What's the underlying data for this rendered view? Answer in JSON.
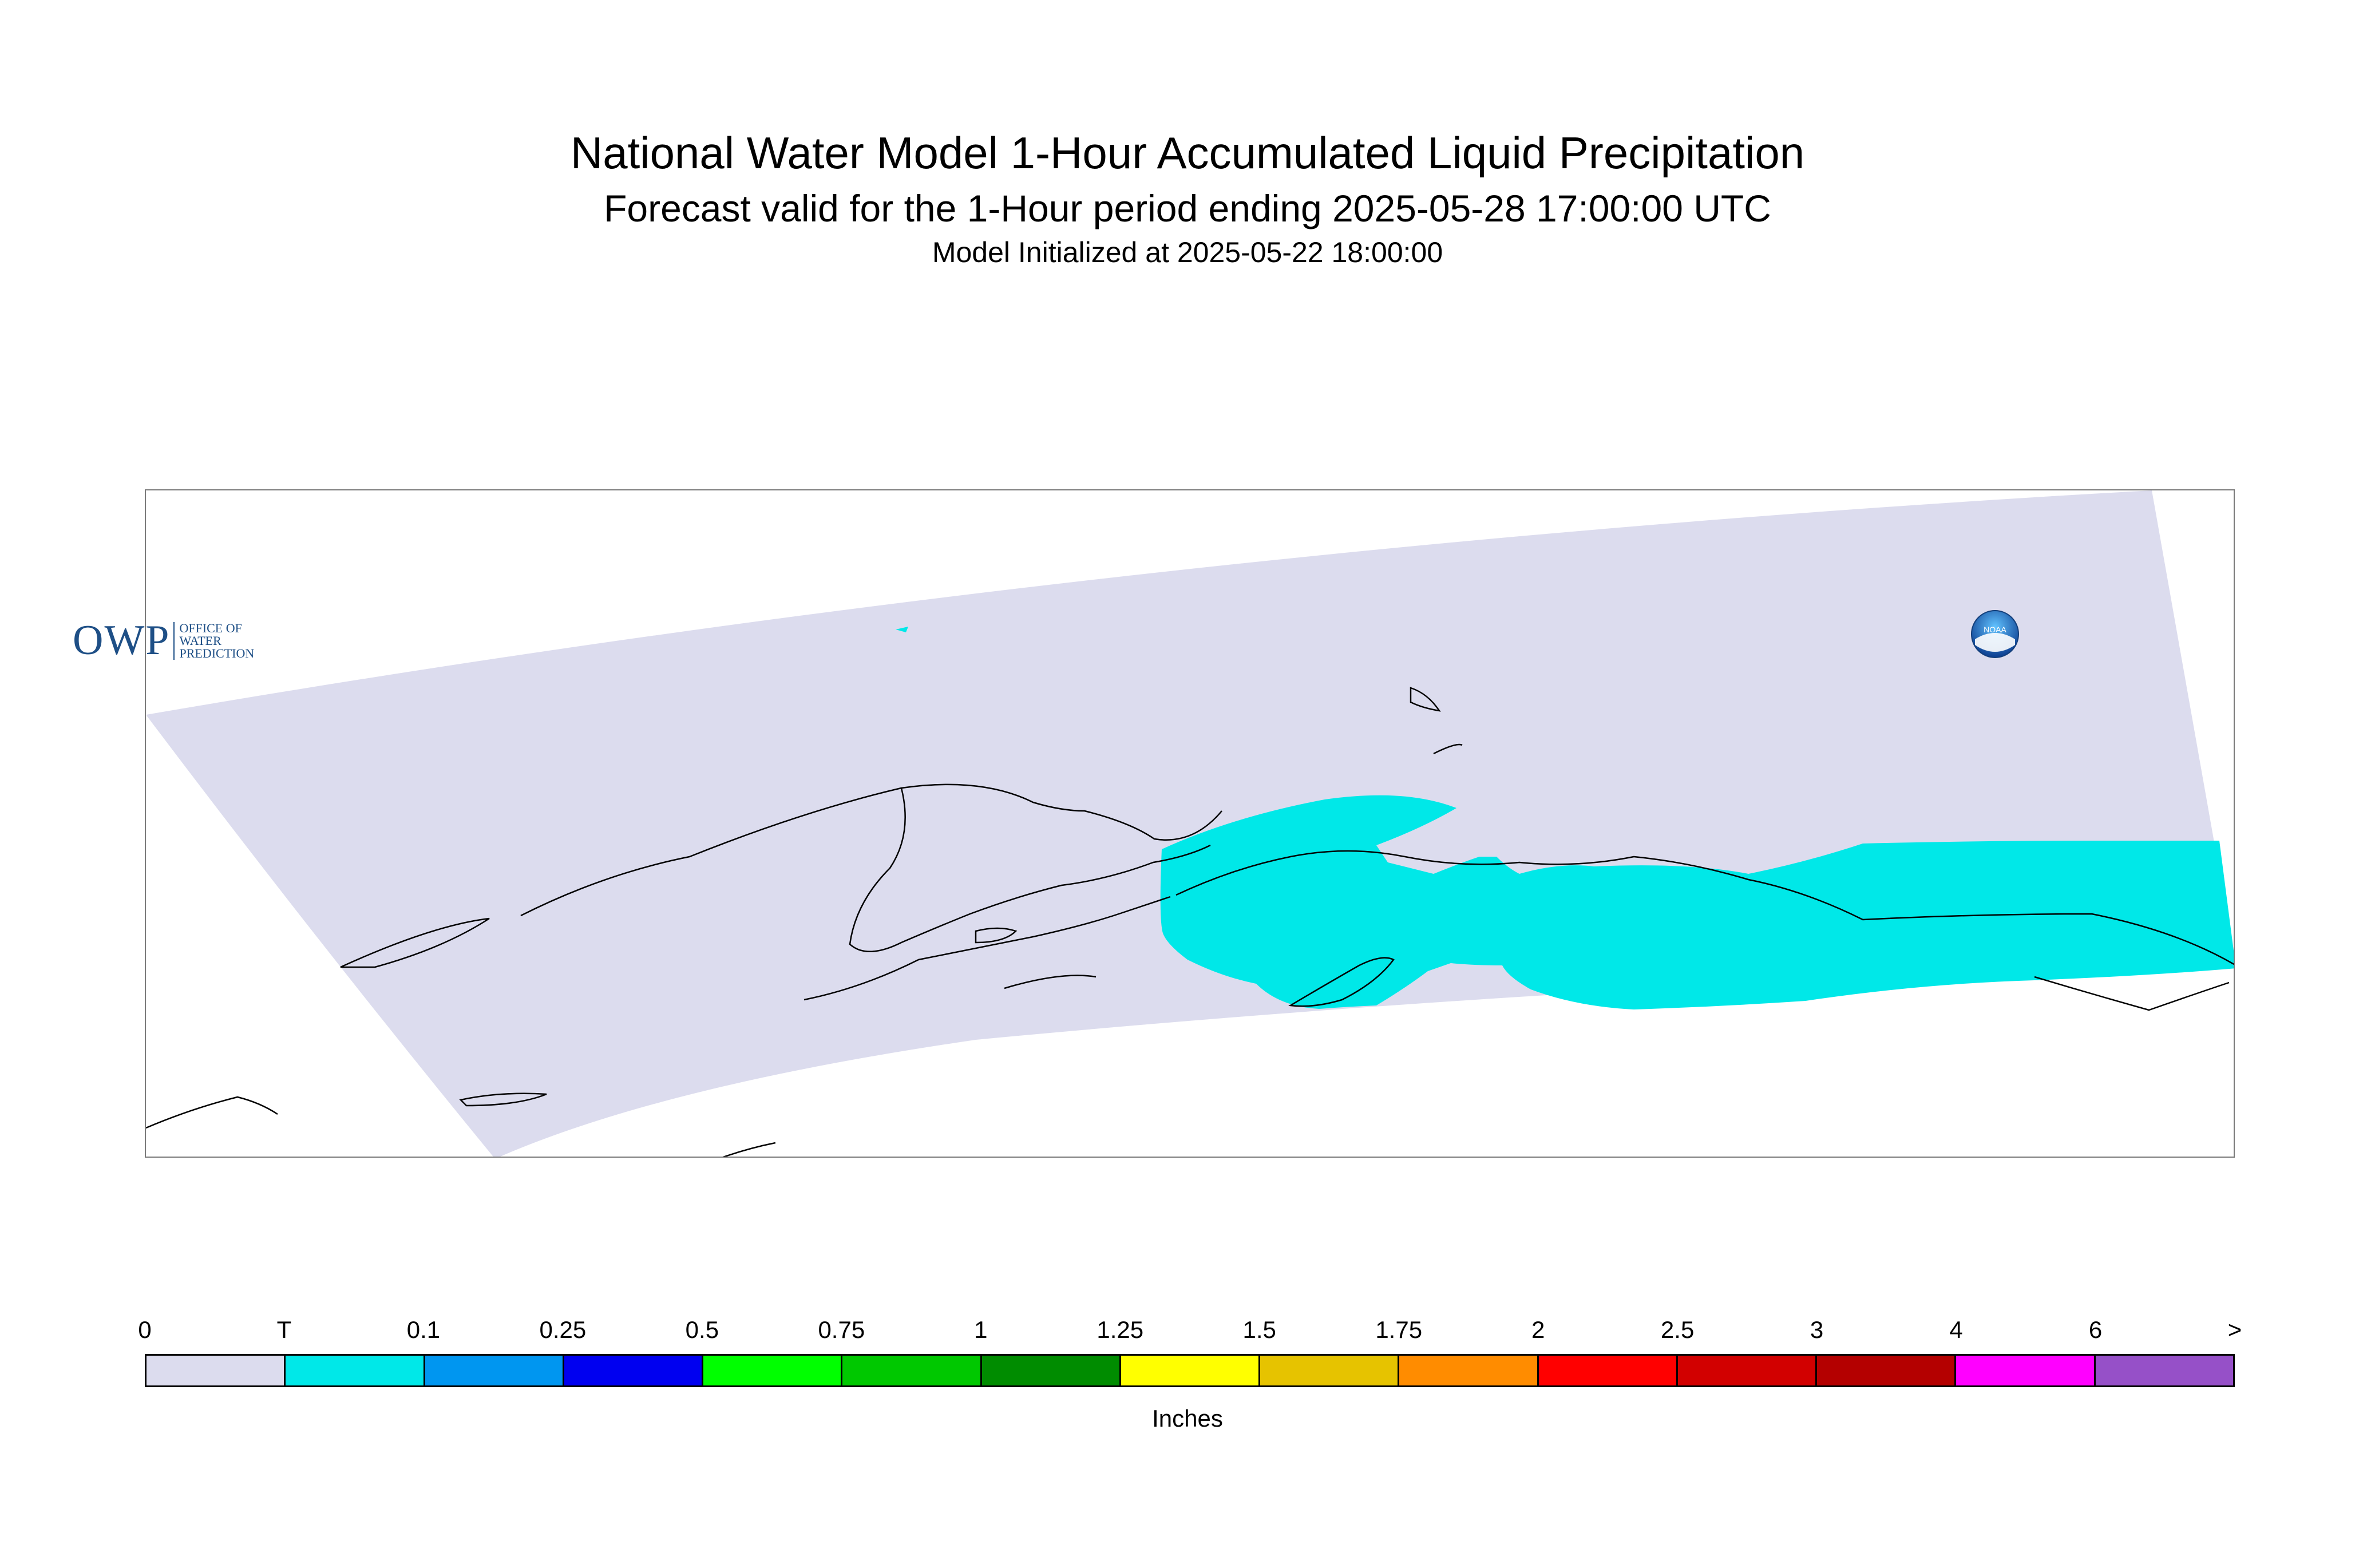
{
  "title": "National Water Model 1-Hour Accumulated Liquid Precipitation",
  "subtitle": "Forecast valid for the 1-Hour period ending 2025-05-28 17:00:00 UTC",
  "initialized": "Model Initialized at 2025-05-22 18:00:00",
  "owp_logo": {
    "mark": "OWP",
    "lines": [
      "OFFICE OF",
      "WATER",
      "PREDICTION"
    ]
  },
  "noaa_logo": {
    "icon": "noaa-icon",
    "text": "NOAA"
  },
  "colors": {
    "domain_fill": "#dcdcee",
    "precip_trace": "#00e8e8",
    "coastline": "#000000",
    "frame": "#7a7a7a"
  },
  "legend": {
    "units": "Inches",
    "labels": [
      "0",
      "T",
      "0.1",
      "0.25",
      "0.5",
      "0.75",
      "1",
      "1.25",
      "1.5",
      "1.75",
      "2",
      "2.5",
      "3",
      "4",
      "6",
      ">"
    ],
    "colors": [
      "#dcdcee",
      "#00e8e8",
      "#0096f0",
      "#0000f0",
      "#00ff00",
      "#00c800",
      "#008c00",
      "#ffff00",
      "#e6c300",
      "#ff8c00",
      "#ff0000",
      "#d20000",
      "#b40000",
      "#ff00ff",
      "#9650c8"
    ]
  }
}
